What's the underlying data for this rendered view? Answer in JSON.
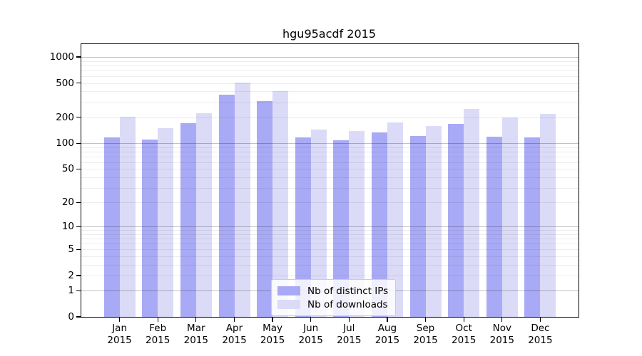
{
  "chart_data": {
    "type": "bar",
    "title": "hgu95acdf 2015",
    "categories": [
      "Jan",
      "Feb",
      "Mar",
      "Apr",
      "May",
      "Jun",
      "Jul",
      "Aug",
      "Sep",
      "Oct",
      "Nov",
      "Dec"
    ],
    "category_year": "2015",
    "series": [
      {
        "name": "Nb of distinct IPs",
        "color": "#a9aaf5",
        "values": [
          117,
          110,
          172,
          369,
          309,
          117,
          108,
          135,
          122,
          167,
          120,
          116
        ]
      },
      {
        "name": "Nb of downloads",
        "color": "#dbdbf8",
        "values": [
          203,
          150,
          223,
          509,
          402,
          145,
          139,
          176,
          159,
          250,
          199,
          220
        ]
      }
    ],
    "y_ticks": [
      0,
      1,
      2,
      5,
      10,
      20,
      50,
      100,
      200,
      500,
      1000
    ],
    "y_scale": "log10(1+x)",
    "ylim": [
      0,
      1400
    ],
    "xlabel": "",
    "ylabel": "",
    "grid": "on",
    "legend_position": "bottom-center",
    "axis_color": "#000000",
    "grid_major_values": [
      1,
      10,
      100,
      1000
    ],
    "grid_minor_bases": [
      1,
      10,
      100
    ]
  }
}
